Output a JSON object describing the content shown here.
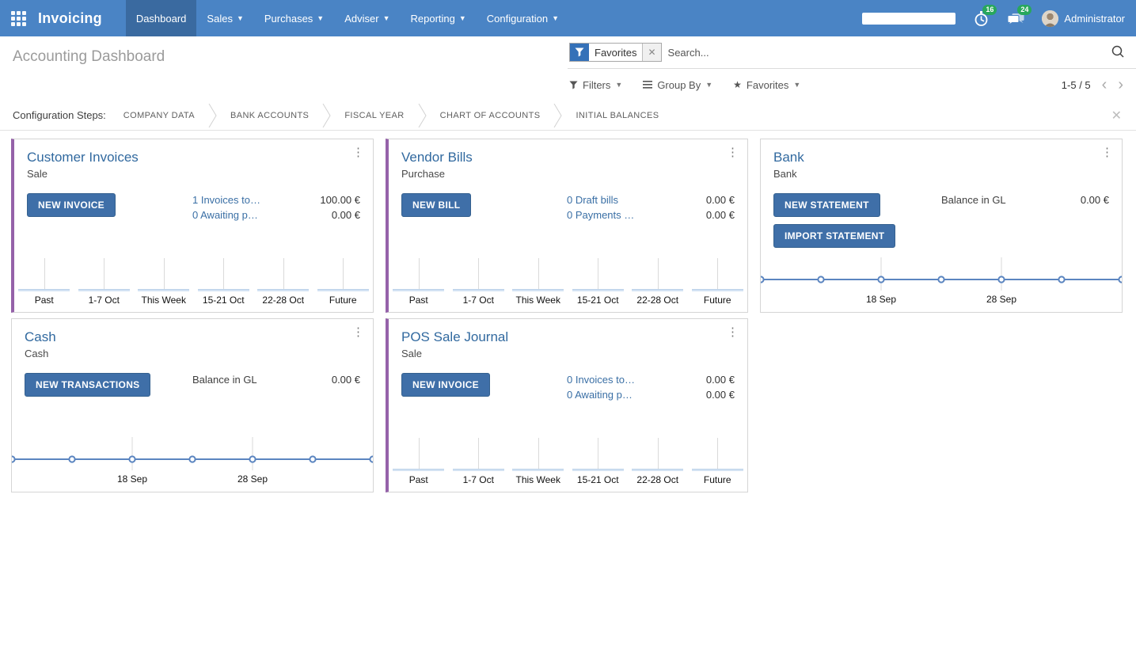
{
  "colors": {
    "navbar_bg": "#4a84c5",
    "navbar_active_bg": "#3a6aa0",
    "accent_purple": "#9562a9",
    "button_blue": "#3f6fa8",
    "link_blue": "#3a6fa5",
    "card_title_blue": "#31699f",
    "badge_green": "#28a75c",
    "progress_green": "#5cb85c",
    "line_blue": "#5b85c0",
    "bar_fill": "#d3e2f3"
  },
  "navbar": {
    "app_name": "Invoicing",
    "menu": [
      {
        "label": "Dashboard",
        "active": true,
        "caret": false
      },
      {
        "label": "Sales",
        "active": false,
        "caret": true
      },
      {
        "label": "Purchases",
        "active": false,
        "caret": true
      },
      {
        "label": "Adviser",
        "active": false,
        "caret": true
      },
      {
        "label": "Reporting",
        "active": false,
        "caret": true
      },
      {
        "label": "Configuration",
        "active": false,
        "caret": true
      }
    ],
    "activity_count": "16",
    "message_count": "24",
    "user": "Administrator"
  },
  "control_panel": {
    "title": "Accounting Dashboard",
    "search": {
      "facet": "Favorites",
      "placeholder": "Search..."
    },
    "buttons": {
      "filters": "Filters",
      "group_by": "Group By",
      "favorites": "Favorites"
    },
    "pager": {
      "text": "1-5 / 5"
    }
  },
  "config_steps": {
    "label": "Configuration Steps:",
    "steps": [
      "COMPANY DATA",
      "BANK ACCOUNTS",
      "FISCAL YEAR",
      "CHART OF ACCOUNTS",
      "INITIAL BALANCES"
    ]
  },
  "cards": [
    {
      "title": "Customer Invoices",
      "subtitle": "Sale",
      "accent": true,
      "buttons": [
        "NEW INVOICE"
      ],
      "rows": [
        {
          "label": "1 Invoices to…",
          "link": true,
          "value": "100.00 €"
        },
        {
          "label": "0 Awaiting p…",
          "link": true,
          "value": "0.00 €"
        }
      ],
      "chart": {
        "type": "bar",
        "categories": [
          "Past",
          "1-7 Oct",
          "This Week",
          "15-21 Oct",
          "22-28 Oct",
          "Future"
        ],
        "values": [
          0,
          0,
          0,
          0,
          0,
          0
        ]
      }
    },
    {
      "title": "Vendor Bills",
      "subtitle": "Purchase",
      "accent": true,
      "buttons": [
        "NEW BILL"
      ],
      "rows": [
        {
          "label": "0 Draft bills",
          "link": true,
          "value": "0.00 €"
        },
        {
          "label": "0 Payments …",
          "link": true,
          "value": "0.00 €"
        }
      ],
      "chart": {
        "type": "bar",
        "categories": [
          "Past",
          "1-7 Oct",
          "This Week",
          "15-21 Oct",
          "22-28 Oct",
          "Future"
        ],
        "values": [
          0,
          0,
          0,
          0,
          0,
          0
        ]
      }
    },
    {
      "title": "Bank",
      "subtitle": "Bank",
      "accent": false,
      "buttons": [
        "NEW STATEMENT",
        "IMPORT STATEMENT"
      ],
      "rows": [
        {
          "label": "Balance in GL",
          "link": false,
          "value": "0.00 €"
        }
      ],
      "chart": {
        "type": "line",
        "points": 7,
        "values": [
          0,
          0,
          0,
          0,
          0,
          0,
          0
        ],
        "ticks": [
          {
            "index": 2,
            "label": "18 Sep"
          },
          {
            "index": 4,
            "label": "28 Sep"
          }
        ]
      }
    },
    {
      "title": "Cash",
      "subtitle": "Cash",
      "accent": false,
      "buttons": [
        "NEW TRANSACTIONS"
      ],
      "rows": [
        {
          "label": "Balance in GL",
          "link": false,
          "value": "0.00 €"
        }
      ],
      "chart": {
        "type": "line",
        "points": 7,
        "values": [
          0,
          0,
          0,
          0,
          0,
          0,
          0
        ],
        "ticks": [
          {
            "index": 2,
            "label": "18 Sep"
          },
          {
            "index": 4,
            "label": "28 Sep"
          }
        ]
      }
    },
    {
      "title": "POS Sale Journal",
      "subtitle": "Sale",
      "accent": true,
      "buttons": [
        "NEW INVOICE"
      ],
      "rows": [
        {
          "label": "0 Invoices to…",
          "link": true,
          "value": "0.00 €"
        },
        {
          "label": "0 Awaiting p…",
          "link": true,
          "value": "0.00 €"
        }
      ],
      "chart": {
        "type": "bar",
        "categories": [
          "Past",
          "1-7 Oct",
          "This Week",
          "15-21 Oct",
          "22-28 Oct",
          "Future"
        ],
        "values": [
          0,
          0,
          0,
          0,
          0,
          0
        ]
      }
    }
  ]
}
